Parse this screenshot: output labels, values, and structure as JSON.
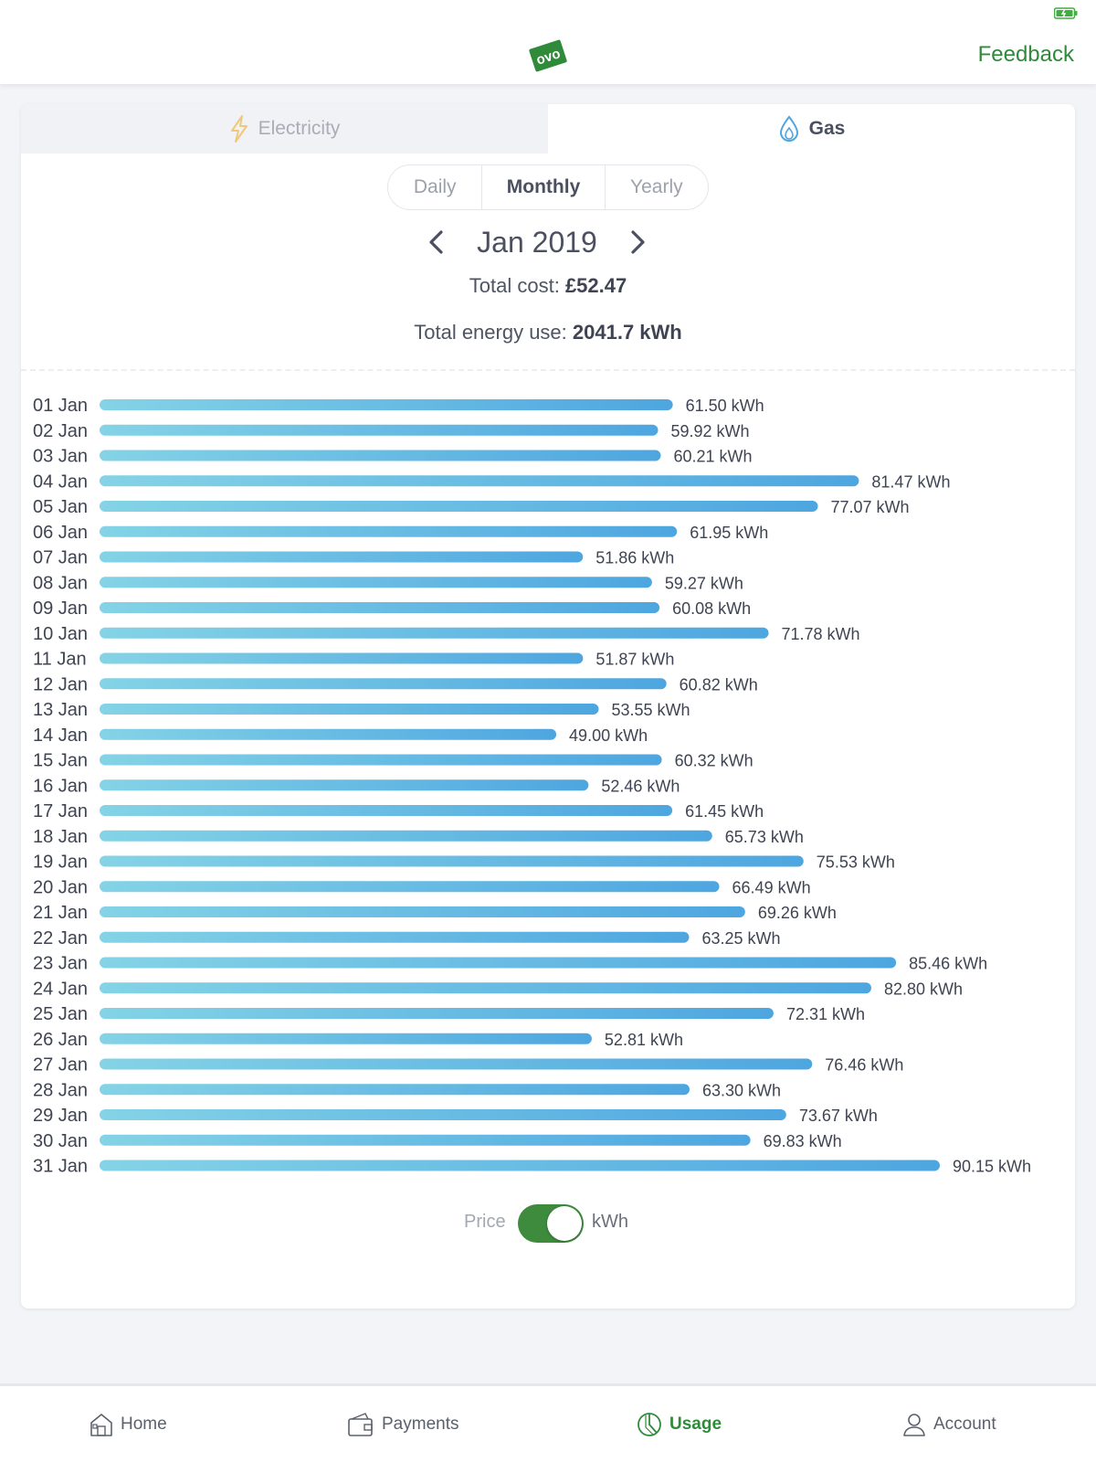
{
  "header": {
    "logo_icon": "ovo-logo-icon",
    "feedback_label": "Feedback",
    "battery_icon": "battery-icon"
  },
  "fuel_tabs": [
    {
      "label": "Electricity",
      "icon": "lightning-icon",
      "active": false
    },
    {
      "label": "Gas",
      "icon": "gas-flame-icon",
      "active": true
    }
  ],
  "period_tabs": [
    {
      "label": "Daily",
      "active": false
    },
    {
      "label": "Monthly",
      "active": true
    },
    {
      "label": "Yearly",
      "active": false
    }
  ],
  "month_nav": {
    "label": "Jan 2019",
    "prev_icon": "chevron-left-icon",
    "next_icon": "chevron-right-icon"
  },
  "totals": {
    "cost_label": "Total cost:",
    "cost_value": "£52.47",
    "energy_label": "Total energy use:",
    "energy_value": "2041.7 kWh"
  },
  "chart_data": {
    "type": "bar",
    "orientation": "horizontal",
    "unit": "kWh",
    "categories": [
      "01 Jan",
      "02 Jan",
      "03 Jan",
      "04 Jan",
      "05 Jan",
      "06 Jan",
      "07 Jan",
      "08 Jan",
      "09 Jan",
      "10 Jan",
      "11 Jan",
      "12 Jan",
      "13 Jan",
      "14 Jan",
      "15 Jan",
      "16 Jan",
      "17 Jan",
      "18 Jan",
      "19 Jan",
      "20 Jan",
      "21 Jan",
      "22 Jan",
      "23 Jan",
      "24 Jan",
      "25 Jan",
      "26 Jan",
      "27 Jan",
      "28 Jan",
      "29 Jan",
      "30 Jan",
      "31 Jan"
    ],
    "values": [
      61.5,
      59.92,
      60.21,
      81.47,
      77.07,
      61.95,
      51.86,
      59.27,
      60.08,
      71.78,
      51.87,
      60.82,
      53.55,
      49.0,
      60.32,
      52.46,
      61.45,
      65.73,
      75.53,
      66.49,
      69.26,
      63.25,
      85.46,
      82.8,
      72.31,
      52.81,
      76.46,
      63.3,
      73.67,
      69.83,
      90.15
    ],
    "value_labels": [
      "61.50 kWh",
      "59.92 kWh",
      "60.21 kWh",
      "81.47 kWh",
      "77.07 kWh",
      "61.95 kWh",
      "51.86 kWh",
      "59.27 kWh",
      "60.08 kWh",
      "71.78 kWh",
      "51.87 kWh",
      "60.82 kWh",
      "53.55 kWh",
      "49.00 kWh",
      "60.32 kWh",
      "52.46 kWh",
      "61.45 kWh",
      "65.73 kWh",
      "75.53 kWh",
      "66.49 kWh",
      "69.26 kWh",
      "63.25 kWh",
      "85.46 kWh",
      "82.80 kWh",
      "72.31 kWh",
      "52.81 kWh",
      "76.46 kWh",
      "63.30 kWh",
      "73.67 kWh",
      "69.83 kWh",
      "90.15 kWh"
    ],
    "xlim": [
      0,
      90.15
    ],
    "grid": false,
    "bar_color_start": "#84d3e6",
    "bar_color_end": "#4ea6e0"
  },
  "toggle": {
    "left_label": "Price",
    "right_label": "kWh",
    "state": "kWh",
    "color": "#3e8b3e"
  },
  "bottom_nav": [
    {
      "label": "Home",
      "icon": "home-icon",
      "active": false
    },
    {
      "label": "Payments",
      "icon": "wallet-icon",
      "active": false
    },
    {
      "label": "Usage",
      "icon": "usage-pie-icon",
      "active": true
    },
    {
      "label": "Account",
      "icon": "person-icon",
      "active": false
    }
  ],
  "colors": {
    "brand_green": "#2f8a3a",
    "text": "#4b5060",
    "background": "#f3f4f8"
  }
}
